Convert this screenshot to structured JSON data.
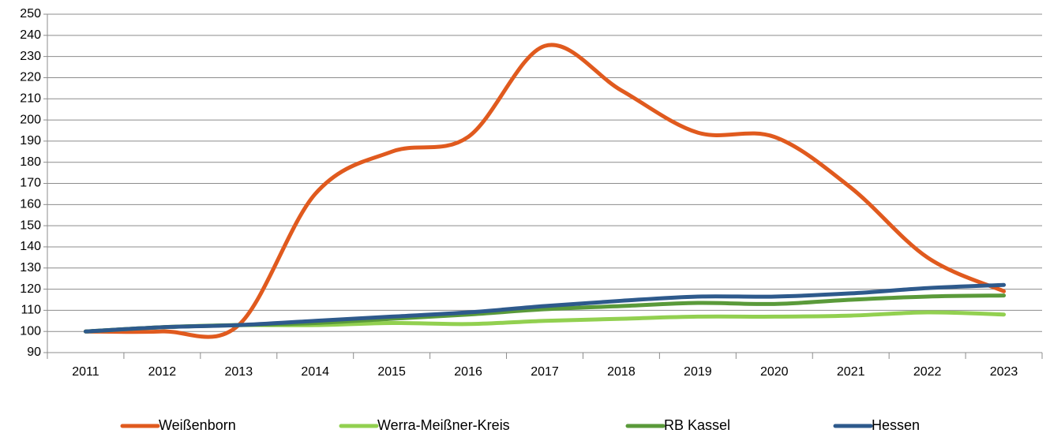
{
  "chart_data": {
    "type": "line",
    "categories": [
      "2011",
      "2012",
      "2013",
      "2014",
      "2015",
      "2016",
      "2017",
      "2018",
      "2019",
      "2020",
      "2021",
      "2022",
      "2023"
    ],
    "series": [
      {
        "name": "Weißenborn",
        "color": "#e05a1e",
        "values": [
          100,
          100,
          103,
          165,
          185,
          192,
          235,
          214,
          194,
          192,
          168,
          135,
          119
        ]
      },
      {
        "name": "Werra-Meißner-Kreis",
        "color": "#92d050",
        "values": [
          100,
          102,
          103,
          103,
          104,
          103.5,
          105,
          106,
          107,
          107,
          107.5,
          109,
          108
        ]
      },
      {
        "name": "RB Kassel",
        "color": "#5a9a3a",
        "values": [
          100,
          102,
          103,
          104,
          106,
          108,
          110.5,
          112,
          113.5,
          113,
          115,
          116.5,
          117
        ]
      },
      {
        "name": "Hessen",
        "color": "#2e5a8c",
        "values": [
          100,
          102,
          103,
          105,
          107,
          109,
          112,
          114.5,
          116.5,
          116.5,
          118,
          120.5,
          122
        ]
      }
    ],
    "ylim": [
      90,
      250
    ],
    "yticks": [
      90,
      100,
      110,
      120,
      130,
      140,
      150,
      160,
      170,
      180,
      190,
      200,
      210,
      220,
      230,
      240,
      250
    ],
    "grid": true,
    "legend": "bottom"
  }
}
